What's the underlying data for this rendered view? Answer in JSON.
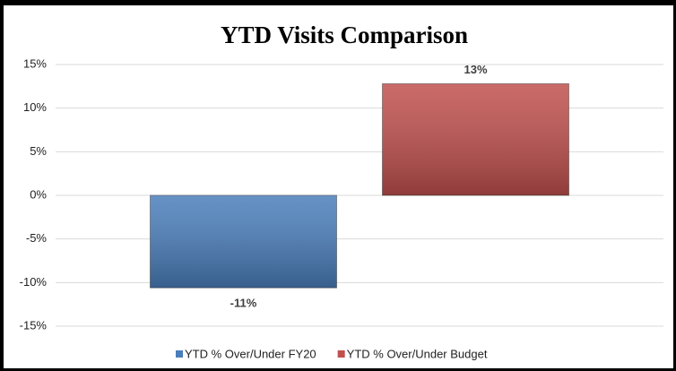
{
  "chart_data": {
    "type": "bar",
    "title": "YTD Visits Comparison",
    "categories": [
      null
    ],
    "series": [
      {
        "name": "YTD % Over/Under FY20",
        "color": "#4a7ebb",
        "values": [
          -10.6
        ],
        "value_labels": [
          "-11%"
        ]
      },
      {
        "name": "YTD % Over/Under Budget",
        "color": "#c0504d",
        "values": [
          12.8
        ],
        "value_labels": [
          "13%"
        ]
      }
    ],
    "ylim": [
      -15,
      15
    ],
    "yticks": [
      {
        "value": -15,
        "label": "-15%"
      },
      {
        "value": -10,
        "label": "-10%"
      },
      {
        "value": -5,
        "label": "-5%"
      },
      {
        "value": 0,
        "label": "0%"
      },
      {
        "value": 5,
        "label": "5%"
      },
      {
        "value": 10,
        "label": "10%"
      },
      {
        "value": 15,
        "label": "15%"
      }
    ],
    "grid": true,
    "legend": "bottom"
  }
}
